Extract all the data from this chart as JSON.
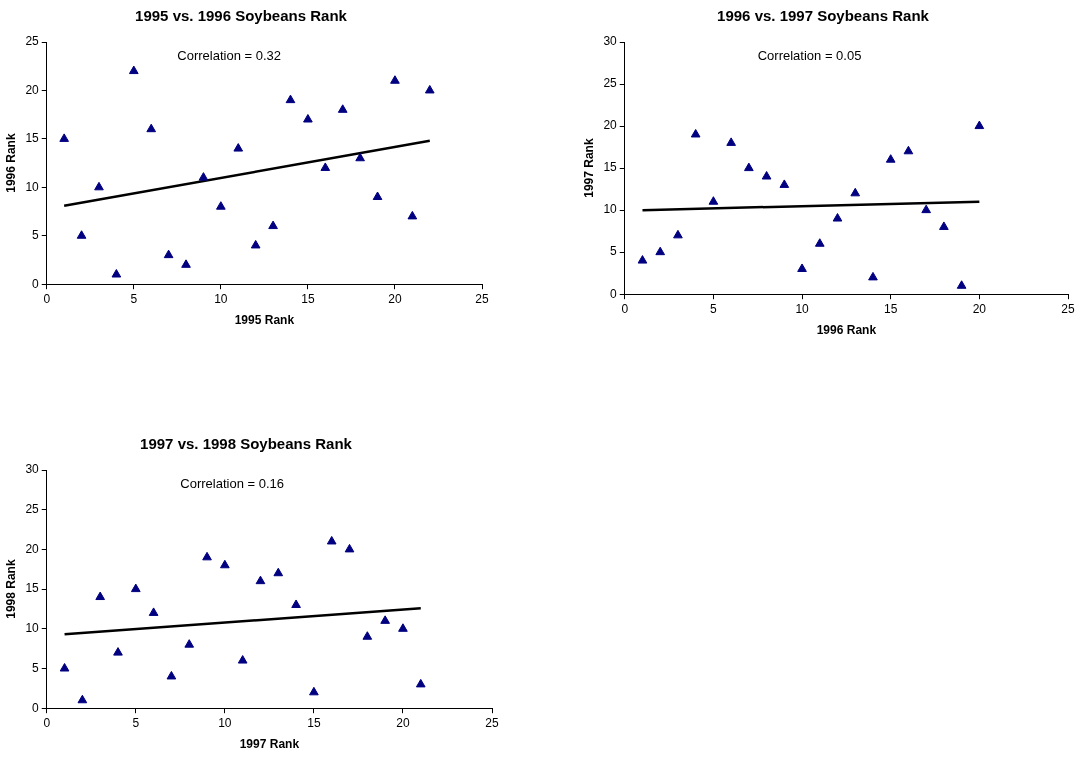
{
  "chart_data": [
    {
      "type": "scatter",
      "title": "1995 vs. 1996 Soybeans Rank",
      "xlabel": "1995 Rank",
      "ylabel": "1996 Rank",
      "xlim": [
        0,
        25
      ],
      "xticks": [
        0,
        5,
        10,
        15,
        20,
        25
      ],
      "ylim": [
        0,
        25
      ],
      "yticks": [
        0,
        5,
        10,
        15,
        20,
        25
      ],
      "annotations": [
        "Correlation = 0.32"
      ],
      "series": [
        {
          "marker": "triangle",
          "color": "#000080",
          "x": [
            1,
            2,
            3,
            4,
            5,
            6,
            7,
            8,
            9,
            10,
            11,
            12,
            13,
            14,
            15,
            16,
            17,
            18,
            19,
            20,
            21,
            22
          ],
          "values": [
            15,
            5,
            10,
            1,
            22,
            16,
            3,
            2,
            11,
            8,
            14,
            4,
            6,
            19,
            17,
            12,
            18,
            13,
            9,
            21,
            7,
            20
          ]
        },
        {
          "type": "line",
          "color": "#000000",
          "x": [
            1,
            22
          ],
          "values": [
            8.1,
            14.8
          ]
        }
      ]
    },
    {
      "type": "scatter",
      "title": "1996 vs. 1997 Soybeans Rank",
      "xlabel": "1996 Rank",
      "ylabel": "1997 Rank",
      "xlim": [
        0,
        25
      ],
      "xticks": [
        0,
        5,
        10,
        15,
        20,
        25
      ],
      "ylim": [
        0,
        30
      ],
      "yticks": [
        0,
        5,
        10,
        15,
        20,
        25,
        30
      ],
      "annotations": [
        "Correlation = 0.05"
      ],
      "series": [
        {
          "marker": "triangle",
          "color": "#000080",
          "x": [
            1,
            2,
            3,
            4,
            5,
            6,
            7,
            8,
            9,
            10,
            11,
            12,
            13,
            14,
            15,
            16,
            17,
            18,
            19,
            20
          ],
          "values": [
            4,
            5,
            7,
            19,
            11,
            18,
            15,
            14,
            13,
            3,
            6,
            9,
            12,
            2,
            16,
            17,
            10,
            8,
            1,
            20
          ]
        },
        {
          "type": "line",
          "color": "#000000",
          "x": [
            1,
            20
          ],
          "values": [
            10,
            11
          ]
        }
      ]
    },
    {
      "type": "scatter",
      "title": "1997 vs. 1998 Soybeans Rank",
      "xlabel": "1997 Rank",
      "ylabel": "1998 Rank",
      "xlim": [
        0,
        25
      ],
      "xticks": [
        0,
        5,
        10,
        15,
        20,
        25
      ],
      "ylim": [
        0,
        30
      ],
      "yticks": [
        0,
        5,
        10,
        15,
        20,
        25,
        30
      ],
      "annotations": [
        "Correlation = 0.16"
      ],
      "series": [
        {
          "marker": "triangle",
          "color": "#000080",
          "x": [
            1,
            2,
            3,
            4,
            5,
            6,
            7,
            8,
            9,
            10,
            11,
            12,
            13,
            14,
            15,
            16,
            17,
            18,
            19,
            20,
            21
          ],
          "values": [
            5,
            1,
            14,
            7,
            15,
            12,
            4,
            8,
            19,
            18,
            6,
            16,
            17,
            13,
            2,
            21,
            20,
            9,
            11,
            10,
            3
          ]
        },
        {
          "type": "line",
          "color": "#000000",
          "x": [
            1,
            21
          ],
          "values": [
            9.3,
            12.6
          ]
        }
      ]
    }
  ]
}
